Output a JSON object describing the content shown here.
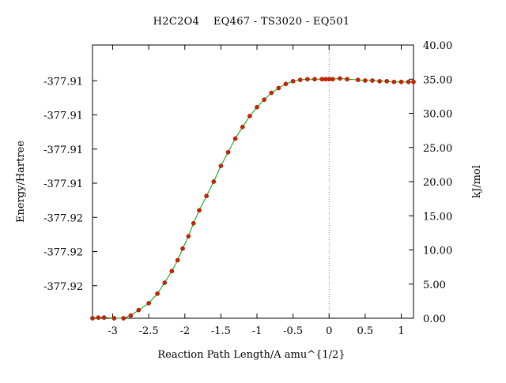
{
  "chart_data": {
    "type": "line",
    "title": "H2C2O4    EQ467 - TS3020 - EQ501",
    "xlabel": "Reaction Path Length/A amu^{1/2}",
    "ylabel_left": "Energy/Hartree",
    "ylabel_right": "kJ/mol",
    "xlim": [
      -3.28,
      1.17
    ],
    "ylim_kj": [
      0,
      40
    ],
    "x_ticks": [
      -3,
      -2.5,
      -2,
      -1.5,
      -1,
      -0.5,
      0,
      0.5,
      1
    ],
    "x_tick_labels": [
      "-3",
      "-2.5",
      "-2",
      "-1.5",
      "-1",
      "-0.5",
      "0",
      "0.5",
      "1"
    ],
    "left_tick_labels": [
      "-377.91",
      "-377.91",
      "-377.91",
      "-377.91",
      "-377.92",
      "-377.92",
      "-377.92"
    ],
    "left_tick_kj": [
      35,
      30,
      25,
      20,
      15,
      10,
      5
    ],
    "right_ticks": [
      0,
      5,
      10,
      15,
      20,
      25,
      30,
      35,
      40
    ],
    "right_tick_labels": [
      "0.00",
      "5.00",
      "10.00",
      "15.00",
      "20.00",
      "25.00",
      "30.00",
      "35.00",
      "40.00"
    ],
    "ts_marker_x": 0,
    "grid": false,
    "line_color": "#00a000",
    "marker_color": "#cc2200",
    "series": [
      {
        "x": [
          -3.28,
          -3.2,
          -3.12,
          -2.98,
          -2.85,
          -2.75,
          -2.64,
          -2.5,
          -2.38,
          -2.28,
          -2.18,
          -2.1,
          -2.03,
          -1.95,
          -1.88,
          -1.8,
          -1.7,
          -1.6,
          -1.5,
          -1.4,
          -1.3,
          -1.2,
          -1.1,
          -1.0,
          -0.9,
          -0.8,
          -0.7,
          -0.6,
          -0.5,
          -0.4,
          -0.3,
          -0.2,
          -0.1,
          -0.05,
          0.0,
          0.05,
          0.15,
          0.25,
          0.4,
          0.5,
          0.6,
          0.7,
          0.8,
          0.9,
          1.0,
          1.1,
          1.17
        ],
        "y": [
          0.0,
          0.1,
          0.1,
          0.0,
          0.0,
          0.4,
          1.2,
          2.2,
          3.6,
          5.2,
          6.9,
          8.5,
          10.2,
          12.0,
          13.9,
          15.8,
          17.9,
          20.0,
          22.3,
          24.3,
          26.3,
          28.0,
          29.6,
          30.9,
          32.0,
          33.0,
          33.7,
          34.3,
          34.7,
          34.9,
          35.0,
          35.0,
          35.0,
          35.0,
          35.0,
          35.0,
          35.1,
          35.0,
          34.9,
          34.8,
          34.8,
          34.7,
          34.7,
          34.6,
          34.6,
          34.6,
          34.6
        ]
      }
    ]
  }
}
